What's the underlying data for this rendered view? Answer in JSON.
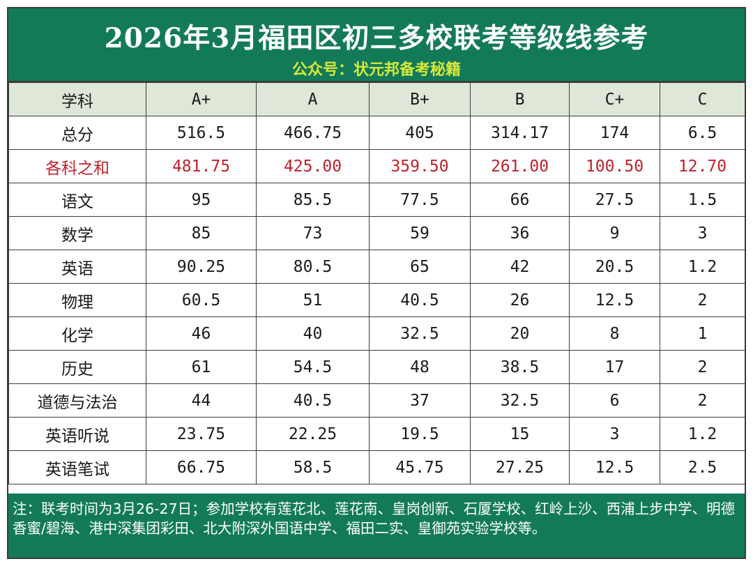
{
  "header": {
    "title": "2026年3月福田区初三多校联考等级线参考",
    "subtitle": "公众号：状元邦备考秘籍"
  },
  "table": {
    "columns": [
      "学科",
      "A+",
      "A",
      "B+",
      "B",
      "C+",
      "C"
    ],
    "rows": [
      {
        "subject": "总分",
        "values": [
          "516.5",
          "466.75",
          "405",
          "314.17",
          "174",
          "6.5"
        ]
      },
      {
        "subject": "各科之和",
        "values": [
          "481.75",
          "425.00",
          "359.50",
          "261.00",
          "100.50",
          "12.70"
        ],
        "highlight": true
      },
      {
        "subject": "语文",
        "values": [
          "95",
          "85.5",
          "77.5",
          "66",
          "27.5",
          "1.5"
        ]
      },
      {
        "subject": "数学",
        "values": [
          "85",
          "73",
          "59",
          "36",
          "9",
          "3"
        ]
      },
      {
        "subject": "英语",
        "values": [
          "90.25",
          "80.5",
          "65",
          "42",
          "20.5",
          "1.2"
        ]
      },
      {
        "subject": "物理",
        "values": [
          "60.5",
          "51",
          "40.5",
          "26",
          "12.5",
          "2"
        ]
      },
      {
        "subject": "化学",
        "values": [
          "46",
          "40",
          "32.5",
          "20",
          "8",
          "1"
        ]
      },
      {
        "subject": "历史",
        "values": [
          "61",
          "54.5",
          "48",
          "38.5",
          "17",
          "2"
        ]
      },
      {
        "subject": "道德与法治",
        "values": [
          "44",
          "40.5",
          "37",
          "32.5",
          "6",
          "2"
        ]
      },
      {
        "subject": "英语听说",
        "values": [
          "23.75",
          "22.25",
          "19.5",
          "15",
          "3",
          "1.2"
        ]
      },
      {
        "subject": "英语笔试",
        "values": [
          "66.75",
          "58.5",
          "45.75",
          "27.25",
          "12.5",
          "2.5"
        ]
      }
    ]
  },
  "note": "注：联考时间为3月26-27日；参加学校有莲花北、莲花南、皇岗创新、石厦学校、红岭上沙、西浦上步中学、明德香蜜/碧海、港中深集团彩田、北大附深外国语中学、福田二实、皇御苑实验学校等。",
  "colors": {
    "header_bg": "#137a59",
    "subtitle": "#d6e83a",
    "header_row_bg": "#dfe7d8",
    "highlight_text": "#c0202a",
    "grid": "#3b3b3b"
  }
}
